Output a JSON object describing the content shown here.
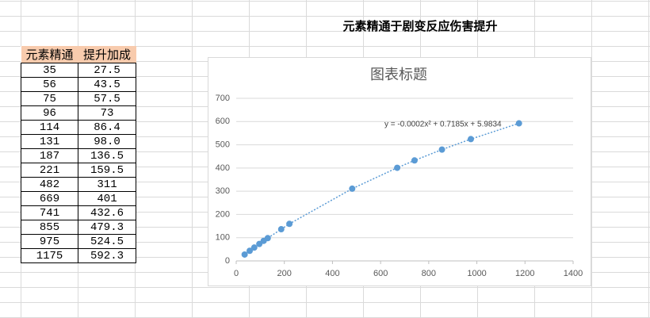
{
  "sheet_title": "元素精通于剧变反应伤害提升",
  "table": {
    "header": [
      "元素精通",
      "提升加成"
    ],
    "rows": [
      [
        "35",
        "27.5"
      ],
      [
        "56",
        "43.5"
      ],
      [
        "75",
        "57.5"
      ],
      [
        "96",
        "73"
      ],
      [
        "114",
        "86.4"
      ],
      [
        "131",
        "98.0"
      ],
      [
        "187",
        "136.5"
      ],
      [
        "221",
        "159.5"
      ],
      [
        "482",
        "311"
      ],
      [
        "669",
        "401"
      ],
      [
        "741",
        "432.6"
      ],
      [
        "855",
        "479.3"
      ],
      [
        "975",
        "524.5"
      ],
      [
        "1175",
        "592.3"
      ]
    ]
  },
  "chart_data": {
    "type": "scatter",
    "title": "图表标题",
    "color": "#5b9bd5",
    "x": [
      35,
      56,
      75,
      96,
      114,
      131,
      187,
      221,
      482,
      669,
      741,
      855,
      975,
      1175
    ],
    "values": [
      27.5,
      43.5,
      57.5,
      73,
      86.4,
      98.0,
      136.5,
      159.5,
      311,
      401,
      432.6,
      479.3,
      524.5,
      592.3
    ],
    "xlim": [
      0,
      1400
    ],
    "xticks": [
      0,
      200,
      400,
      600,
      800,
      1000,
      1200,
      1400
    ],
    "ylim": [
      0,
      700
    ],
    "yticks": [
      0,
      100,
      200,
      300,
      400,
      500,
      600,
      700
    ],
    "grid": true,
    "annotation": "y = -0.0002x² + 0.7185x + 5.9834"
  }
}
